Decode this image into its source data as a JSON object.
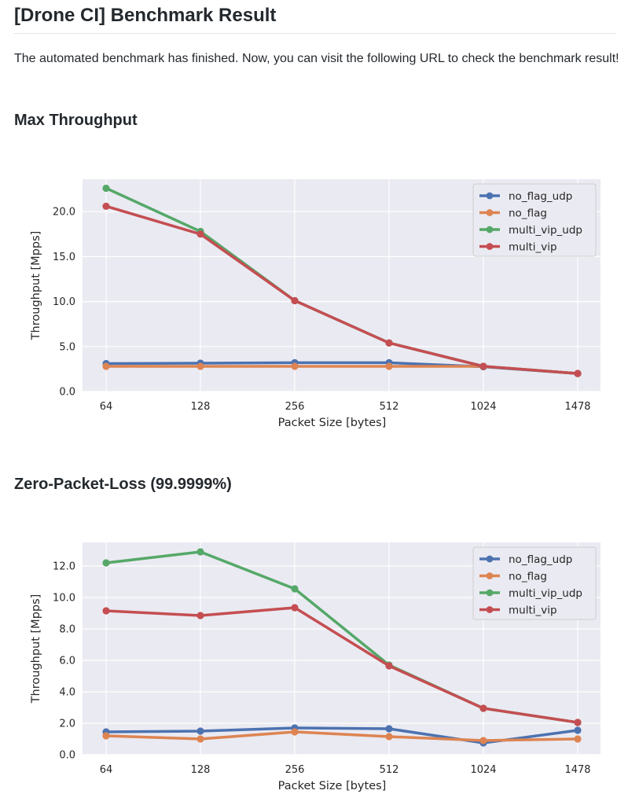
{
  "page": {
    "title": "[Drone CI] Benchmark Result",
    "intro": "The automated benchmark has finished. Now, you can visit the following URL to check the benchmark result!"
  },
  "sections": [
    {
      "title": "Max Throughput"
    },
    {
      "title": "Zero-Packet-Loss (99.9999%)"
    }
  ],
  "series_colors": [
    "#4c72b0",
    "#dd8452",
    "#55a868",
    "#c44e52"
  ],
  "chart_data": [
    {
      "type": "line",
      "categories": [
        "64",
        "128",
        "256",
        "512",
        "1024",
        "1478"
      ],
      "xlabel": "Packet Size [bytes]",
      "ylabel": "Throughput [Mpps]",
      "ylim": [
        0,
        23.6
      ],
      "yticks": [
        0,
        5,
        10,
        15,
        20
      ],
      "ytick_labels": [
        "0.0",
        "5.0",
        "10.0",
        "15.0",
        "20.0"
      ],
      "grid": true,
      "legend": "top-right",
      "series": [
        {
          "name": "no_flag_udp",
          "values": [
            3.1,
            3.15,
            3.2,
            3.2,
            2.75,
            2.0
          ]
        },
        {
          "name": "no_flag",
          "values": [
            2.8,
            2.8,
            2.8,
            2.8,
            2.8,
            2.0
          ]
        },
        {
          "name": "multi_vip_udp",
          "values": [
            22.6,
            17.8,
            10.1,
            5.4,
            2.8,
            2.0
          ]
        },
        {
          "name": "multi_vip",
          "values": [
            20.6,
            17.5,
            10.1,
            5.4,
            2.8,
            2.0
          ]
        }
      ]
    },
    {
      "type": "line",
      "categories": [
        "64",
        "128",
        "256",
        "512",
        "1024",
        "1478"
      ],
      "xlabel": "Packet Size [bytes]",
      "ylabel": "Throughput [Mpps]",
      "ylim": [
        0,
        13.5
      ],
      "yticks": [
        0,
        2,
        4,
        6,
        8,
        10,
        12
      ],
      "ytick_labels": [
        "0.0",
        "2.0",
        "4.0",
        "6.0",
        "8.0",
        "10.0",
        "12.0"
      ],
      "grid": true,
      "legend": "top-right",
      "series": [
        {
          "name": "no_flag_udp",
          "values": [
            1.45,
            1.5,
            1.7,
            1.65,
            0.75,
            1.55
          ]
        },
        {
          "name": "no_flag",
          "values": [
            1.2,
            1.0,
            1.45,
            1.15,
            0.9,
            1.0
          ]
        },
        {
          "name": "multi_vip_udp",
          "values": [
            12.2,
            12.9,
            10.55,
            5.7,
            2.95,
            2.05
          ]
        },
        {
          "name": "multi_vip",
          "values": [
            9.15,
            8.85,
            9.35,
            5.65,
            2.95,
            2.05
          ]
        }
      ]
    }
  ]
}
